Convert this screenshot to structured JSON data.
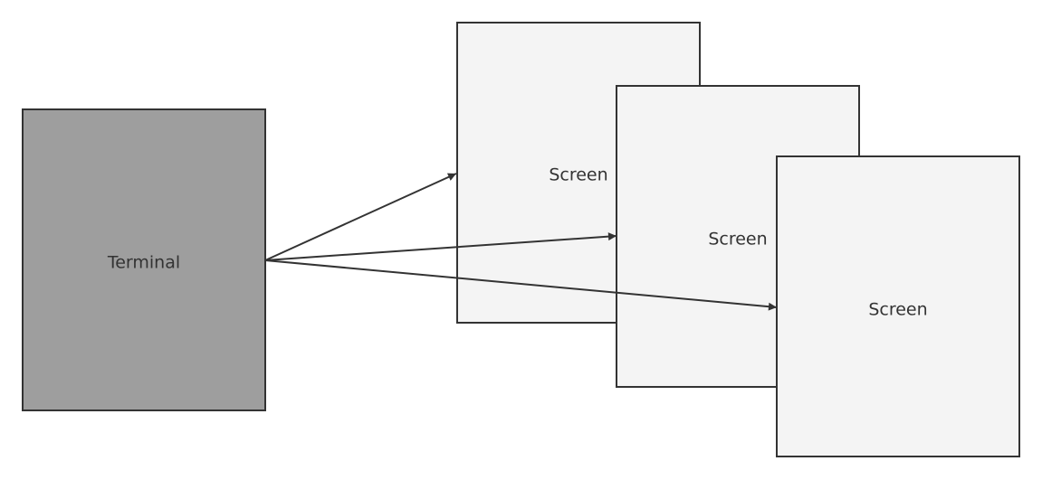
{
  "diagram": {
    "nodes": [
      {
        "id": "terminal",
        "label": "Terminal"
      },
      {
        "id": "screen1",
        "label": "Screen"
      },
      {
        "id": "screen2",
        "label": "Screen"
      },
      {
        "id": "screen3",
        "label": "Screen"
      }
    ],
    "edges": [
      {
        "from": "terminal",
        "to": "screen1"
      },
      {
        "from": "terminal",
        "to": "screen2"
      },
      {
        "from": "terminal",
        "to": "screen3"
      }
    ],
    "colors": {
      "terminal_fill": "#9e9e9e",
      "screen_fill": "#f4f4f4",
      "stroke": "#333333"
    }
  }
}
